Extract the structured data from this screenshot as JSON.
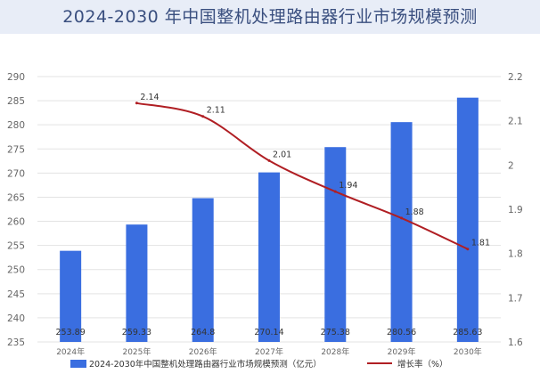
{
  "chart_data": {
    "type": "bar",
    "title": "2024-2030 年中国整机处理路由器行业市场规模预测",
    "categories": [
      "2024年",
      "2025年",
      "2026年",
      "2027年",
      "2028年",
      "2029年",
      "2030年"
    ],
    "ylim": [
      235,
      290
    ],
    "yticks": [
      235,
      240,
      245,
      250,
      255,
      260,
      265,
      270,
      275,
      280,
      285,
      290
    ],
    "y2lim": [
      1.6,
      2.2
    ],
    "y2ticks": [
      1.6,
      1.7,
      1.8,
      1.9,
      2,
      2.1,
      2.2
    ],
    "grid": true,
    "legend_position": "bottom",
    "series": [
      {
        "name": "2024-2030年中国整机处理路由器行业市场规模预测（亿元）",
        "type": "bar",
        "axis": "left",
        "color": "#3a6ee0",
        "values": [
          253.89,
          259.33,
          264.8,
          270.14,
          275.38,
          280.56,
          285.63
        ],
        "labels": [
          "253.89",
          "259.33",
          "264.8",
          "270.14",
          "275.38",
          "280.56",
          "285.63"
        ]
      },
      {
        "name": "增长率（%）",
        "type": "line",
        "axis": "right",
        "color": "#b01e23",
        "x": [
          "2025年",
          "2026年",
          "2027年",
          "2028年",
          "2029年",
          "2030年"
        ],
        "values": [
          2.14,
          2.11,
          2.01,
          1.94,
          1.88,
          1.81
        ],
        "labels": [
          "2.14",
          "2.11",
          "2.01",
          "1.94",
          "1.88",
          "1.81"
        ]
      }
    ]
  }
}
